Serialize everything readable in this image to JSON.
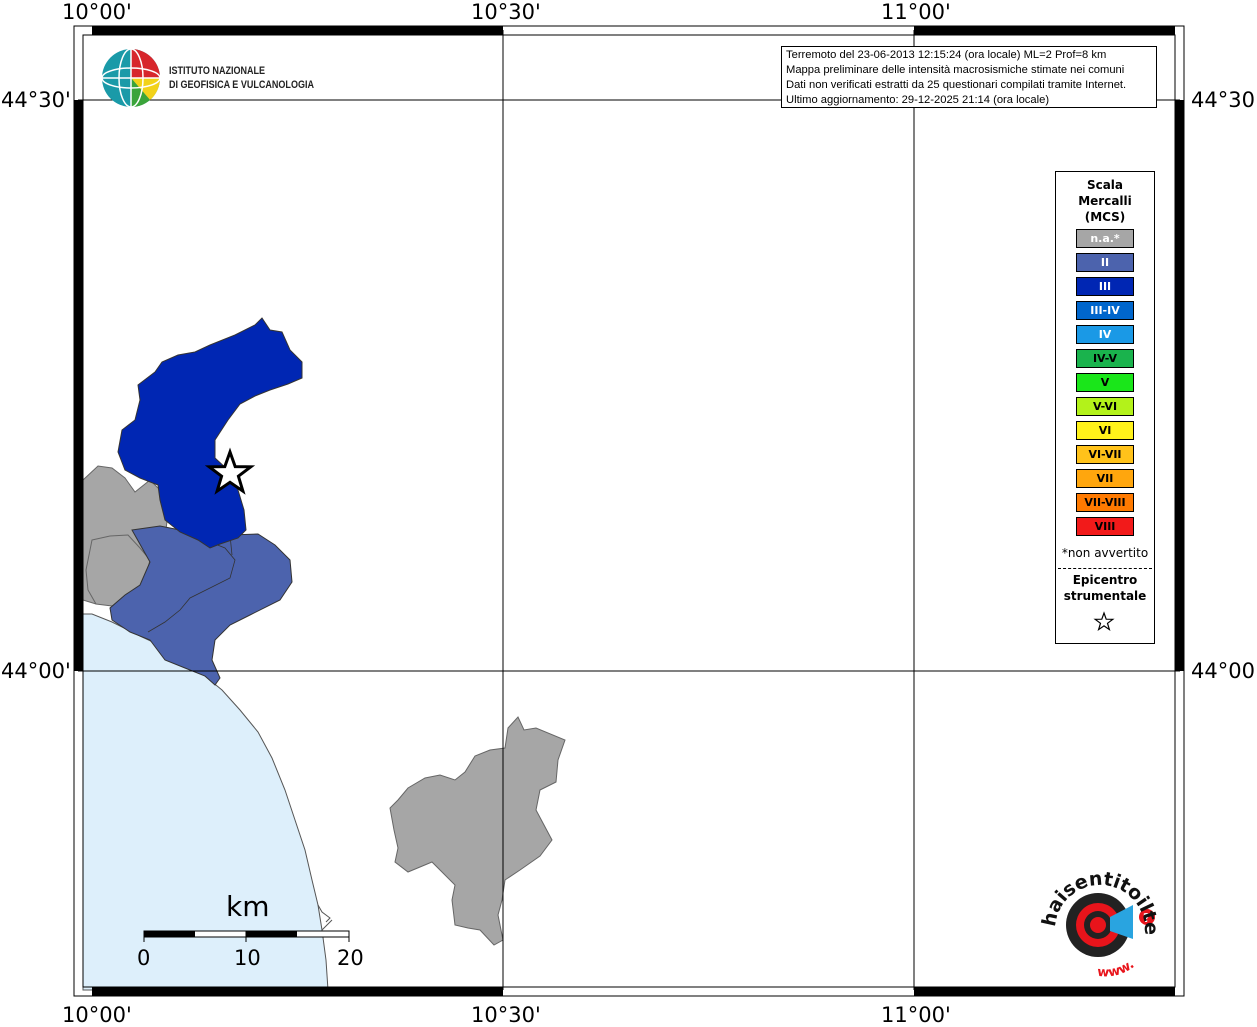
{
  "map": {
    "lon_labels": [
      "10°00'",
      "10°30'",
      "11°00'"
    ],
    "lat_labels": [
      "44°30'",
      "44°00'"
    ],
    "info_box": [
      "Terremoto del 23-06-2013 12:15:24 (ora locale) ML=2 Prof=8 km",
      "Mappa preliminare delle intensità macrosismiche stimate nei comuni",
      "Dati non verificati estratti da 25 questionari compilati tramite Internet.",
      "Ultimo aggiornamento: 29-12-2025 21:14 (ora locale)"
    ],
    "institute": {
      "line1": "ISTITUTO NAZIONALE",
      "line2": "DI GEOFISICA E VULCANOLOGIA"
    },
    "scale_bar": {
      "unit": "km",
      "ticks": [
        "0",
        "10",
        "20"
      ]
    },
    "epicenter_marker": "star-icon"
  },
  "legend": {
    "title_lines": [
      "Scala",
      "Mercalli",
      "(MCS)"
    ],
    "items": [
      {
        "label": "n.a.*",
        "color": "#a6a6a6",
        "text_color": "#ffffff"
      },
      {
        "label": "II",
        "color": "#4c63ad",
        "text_color": "#ffffff"
      },
      {
        "label": "III",
        "color": "#0026b3",
        "text_color": "#ffffff"
      },
      {
        "label": "III-IV",
        "color": "#0066cc",
        "text_color": "#ffffff"
      },
      {
        "label": "IV",
        "color": "#1a99e6",
        "text_color": "#ffffff"
      },
      {
        "label": "IV-V",
        "color": "#1ab34d",
        "text_color": "#000000"
      },
      {
        "label": "V",
        "color": "#1ae61a",
        "text_color": "#000000"
      },
      {
        "label": "V-VI",
        "color": "#b3f21a",
        "text_color": "#000000"
      },
      {
        "label": "VI",
        "color": "#fff21a",
        "text_color": "#000000"
      },
      {
        "label": "VI-VII",
        "color": "#ffc21a",
        "text_color": "#000000"
      },
      {
        "label": "VII",
        "color": "#ffa60d",
        "text_color": "#000000"
      },
      {
        "label": "VII-VIII",
        "color": "#ff7a00",
        "text_color": "#000000"
      },
      {
        "label": "VIII",
        "color": "#f21a1a",
        "text_color": "#000000"
      }
    ],
    "note": "*non avvertito",
    "epicenter_lines": [
      "Epicentro",
      "strumentale"
    ]
  },
  "branding": {
    "site_text": "haisentitoilterremoto.it",
    "url_text": "www.",
    "question_mark": "?"
  },
  "colors": {
    "sea": "#ddeffb",
    "not_available": "#a6a6a6",
    "intensity_II": "#4c63ad",
    "intensity_III": "#0026b3"
  }
}
